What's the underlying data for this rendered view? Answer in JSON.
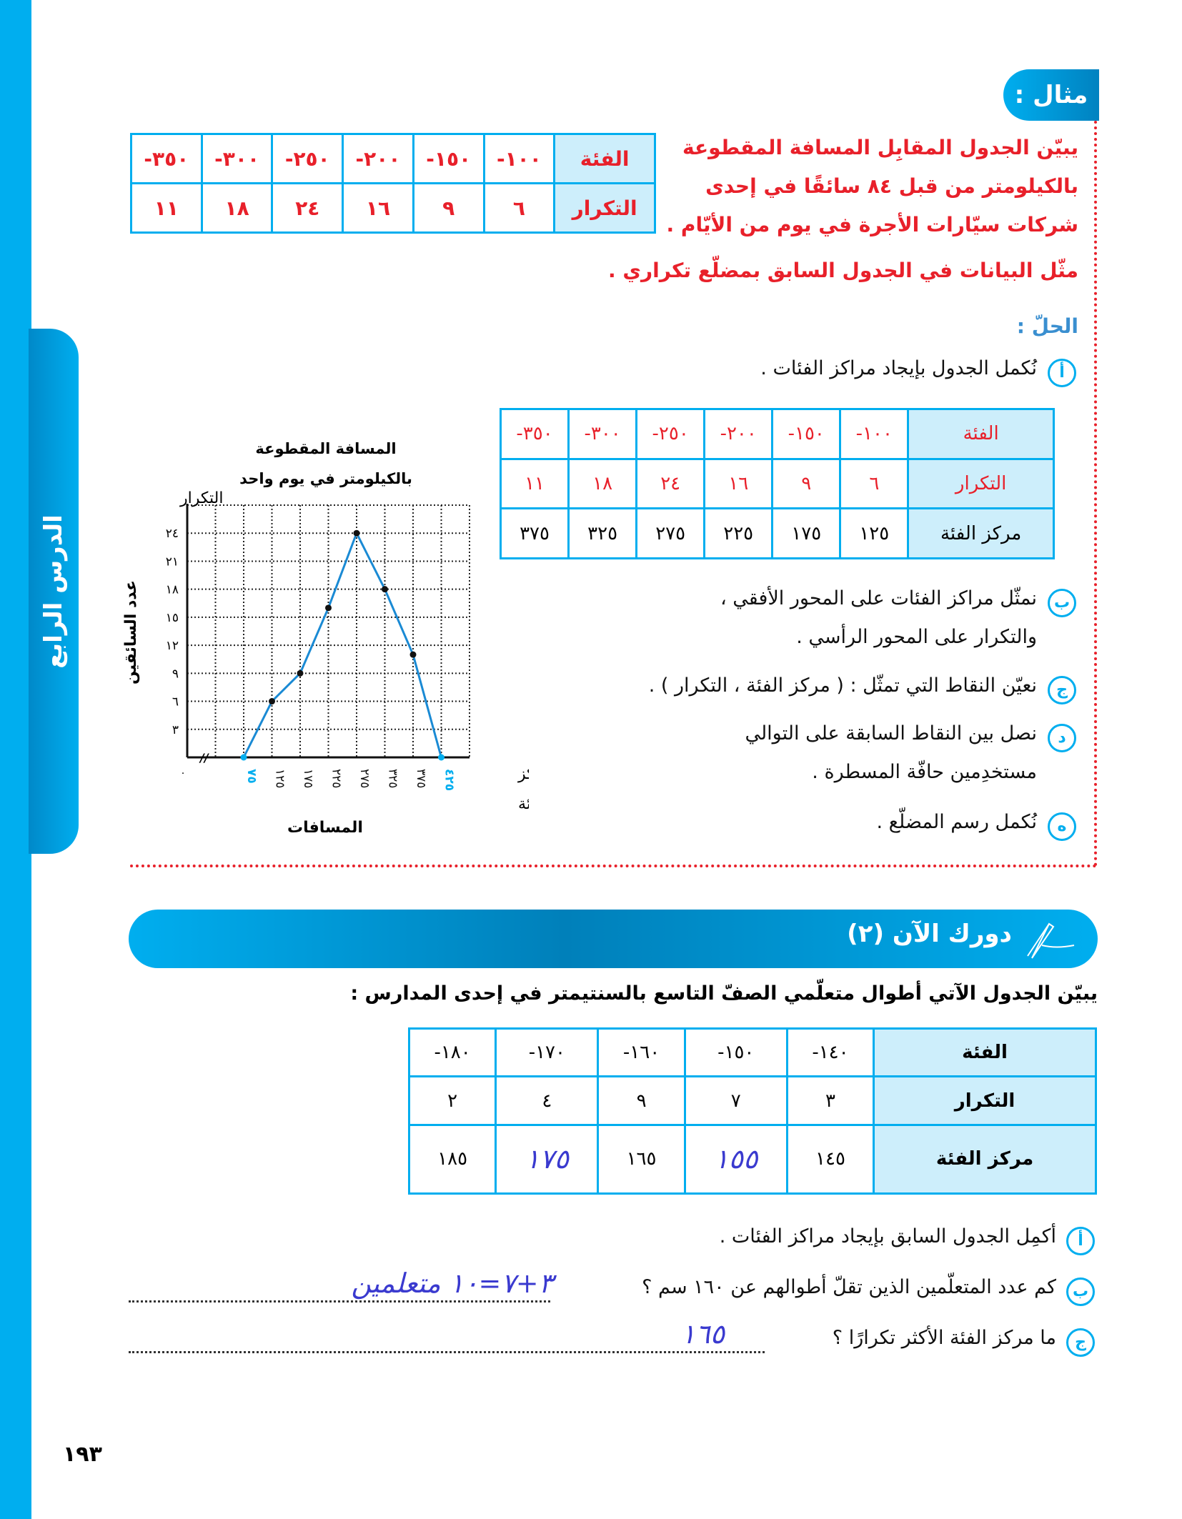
{
  "side_tab": "الدرس الرابع",
  "example": {
    "badge": "مثال :",
    "lines": [
      "يبيّن الجدول المقابِل المسافة المقطوعة",
      "بالكيلومتر من قبل ٨٤ سائقًا في إحدى",
      "شركات سيّارات الأجرة في يوم من الأيّام ."
    ],
    "instruction": "مثّل البيانات في الجدول السابق بمضلّع تكراري ."
  },
  "table1": {
    "row_headers": [
      "الفئة",
      "التكرار"
    ],
    "classes": [
      "-١٠٠",
      "-١٥٠",
      "-٢٠٠",
      "-٢٥٠",
      "-٣٠٠",
      "-٣٥٠"
    ],
    "freq": [
      "٦",
      "٩",
      "١٦",
      "٢٤",
      "١٨",
      "١١"
    ]
  },
  "solution": {
    "label": "الحلّ :",
    "steps": [
      {
        "marker": "أ",
        "lines": [
          "نُكمل الجدول بإيجاد مراكز الفئات ."
        ]
      },
      {
        "marker": "ب",
        "lines": [
          "نمثّل مراكز الفئات على المحور الأفقي ،",
          "والتكرار على المحور الرأسي ."
        ]
      },
      {
        "marker": "ج",
        "lines": [
          "نعيّن النقاط التي تمثّل : ( مركز الفئة ، التكرار ) ."
        ]
      },
      {
        "marker": "د",
        "lines": [
          "نصل بين النقاط السابقة على التوالي",
          "مستخدِمين حافّة المسطرة ."
        ]
      },
      {
        "marker": "ه",
        "lines": [
          "نُكمل رسم المضلّع ."
        ]
      }
    ]
  },
  "table2": {
    "row_headers": [
      "الفئة",
      "التكرار",
      "مركز الفئة"
    ],
    "classes": [
      "-١٠٠",
      "-١٥٠",
      "-٢٠٠",
      "-٢٥٠",
      "-٣٠٠",
      "-٣٥٠"
    ],
    "freq": [
      "٦",
      "٩",
      "١٦",
      "٢٤",
      "١٨",
      "١١"
    ],
    "centers": [
      "١٢٥",
      "١٧٥",
      "٢٢٥",
      "٢٧٥",
      "٣٢٥",
      "٣٧٥"
    ]
  },
  "chart_data": {
    "type": "line",
    "title": [
      "المسافة المقطوعة",
      "بالكيلومتر في يوم واحد"
    ],
    "ylabel_top": "التكرار",
    "ylabel": "عدد السائقين",
    "xlabel_right": [
      "مركز",
      "الفئة"
    ],
    "xlabel": "المسافات",
    "origin_label": "٠",
    "x_tick_labels": [
      "٧٥",
      "١٢٥",
      "١٧٥",
      "٢٢٥",
      "٢٧٥",
      "٣٢٥",
      "٣٧٥",
      "٤٢٥"
    ],
    "y_tick_labels": [
      "٣",
      "٦",
      "٩",
      "١٢",
      "١٥",
      "١٨",
      "٢١",
      "٢٤"
    ],
    "x": [
      75,
      125,
      175,
      225,
      275,
      325,
      375,
      425
    ],
    "y": [
      0,
      6,
      9,
      16,
      24,
      18,
      11,
      0
    ],
    "ylim": [
      0,
      27
    ],
    "y_step": 3,
    "x_step": 50,
    "grid": true,
    "axis_break": true,
    "line_color": "#1a8ad4",
    "endpoint_color": "#00aeef"
  },
  "practice": {
    "banner": "دورك الآن (٢)",
    "question": "يبيّن الجدول الآتي أطوال متعلّمي الصفّ التاسع بالسنتيمتر في إحدى المدارس :",
    "table": {
      "row_headers": [
        "الفئة",
        "التكرار",
        "مركز الفئة"
      ],
      "classes": [
        "-١٤٠",
        "-١٥٠",
        "-١٦٠",
        "-١٧٠",
        "-١٨٠"
      ],
      "freq": [
        "٣",
        "٧",
        "٩",
        "٤",
        "٢"
      ],
      "centers": [
        "١٤٥",
        "١٥٥",
        "١٦٥",
        "١٧٥",
        "١٨٥"
      ],
      "handwritten_centers": [
        false,
        true,
        false,
        true,
        false
      ]
    },
    "items": [
      {
        "marker": "أ",
        "text": "أكمِل الجدول السابق بإيجاد مراكز الفئات .",
        "answer": ""
      },
      {
        "marker": "ب",
        "text": "كم عدد المتعلّمين الذين تقلّ أطوالهم عن ١٦٠ سم ؟",
        "answer": "٣+٧=١٠ متعلمين"
      },
      {
        "marker": "ج",
        "text": "ما مركز الفئة الأكثر تكرارًا ؟",
        "answer": "١٦٥"
      }
    ]
  },
  "page_number": "١٩٣",
  "colors": {
    "accent": "#00aeef",
    "header_fill": "#cdeefb",
    "red": "#e8202a",
    "handwriting": "#3a3acf"
  }
}
